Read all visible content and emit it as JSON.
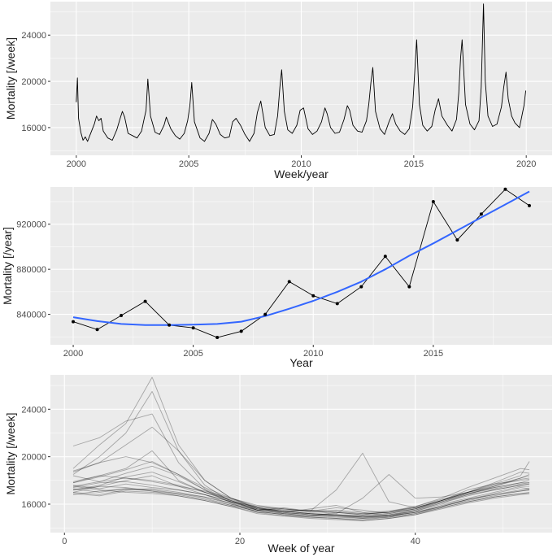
{
  "chart_data": [
    {
      "type": "line",
      "xlabel": "Week/year",
      "ylabel": "Mortality [/week]",
      "xlim": [
        1998.85,
        2021.15
      ],
      "ylim": [
        13600,
        26900
      ],
      "x_ticks": [
        2000,
        2005,
        2010,
        2015,
        2020
      ],
      "y_ticks": [
        16000,
        20000,
        24000
      ],
      "x_tick_labels": [
        "2000",
        "2005",
        "2010",
        "2015",
        "2020"
      ],
      "y_tick_labels": [
        "16000",
        "20000",
        "24000"
      ],
      "grid": true,
      "series": [
        {
          "color": "#000000",
          "description": "weekly mortality 2000-2019 (approximated)",
          "x": [
            2000.0,
            2000.05,
            2000.1,
            2000.2,
            2000.3,
            2000.4,
            2000.5,
            2000.6,
            2000.7,
            2000.8,
            2000.9,
            2001.0,
            2001.1,
            2001.2,
            2001.4,
            2001.6,
            2001.8,
            2001.95,
            2002.05,
            2002.15,
            2002.3,
            2002.5,
            2002.7,
            2002.9,
            2003.0,
            2003.1,
            2003.18,
            2003.3,
            2003.5,
            2003.7,
            2003.9,
            2004.0,
            2004.2,
            2004.4,
            2004.6,
            2004.8,
            2004.95,
            2005.05,
            2005.13,
            2005.25,
            2005.5,
            2005.7,
            2005.9,
            2006.05,
            2006.2,
            2006.4,
            2006.6,
            2006.8,
            2006.95,
            2007.1,
            2007.3,
            2007.5,
            2007.7,
            2007.9,
            2008.05,
            2008.2,
            2008.4,
            2008.6,
            2008.8,
            2008.95,
            2009.05,
            2009.13,
            2009.25,
            2009.4,
            2009.6,
            2009.8,
            2009.95,
            2010.1,
            2010.3,
            2010.5,
            2010.7,
            2010.9,
            2011.05,
            2011.15,
            2011.3,
            2011.5,
            2011.7,
            2011.9,
            2012.05,
            2012.15,
            2012.3,
            2012.5,
            2012.7,
            2012.9,
            2013.0,
            2013.1,
            2013.18,
            2013.3,
            2013.5,
            2013.7,
            2013.9,
            2014.05,
            2014.2,
            2014.4,
            2014.6,
            2014.8,
            2014.95,
            2015.05,
            2015.13,
            2015.25,
            2015.4,
            2015.6,
            2015.8,
            2015.95,
            2016.1,
            2016.25,
            2016.5,
            2016.7,
            2016.9,
            2017.0,
            2017.08,
            2017.15,
            2017.3,
            2017.5,
            2017.7,
            2017.9,
            2018.0,
            2018.1,
            2018.18,
            2018.3,
            2018.5,
            2018.7,
            2018.9,
            2019.0,
            2019.1,
            2019.2,
            2019.35,
            2019.5,
            2019.7,
            2019.9,
            2019.98
          ],
          "y": [
            18200,
            20300,
            16800,
            15600,
            14900,
            15200,
            14800,
            15300,
            15800,
            16300,
            17000,
            16600,
            16800,
            15700,
            15100,
            14900,
            15800,
            16800,
            17400,
            16900,
            15500,
            15300,
            15100,
            15700,
            16600,
            17500,
            20200,
            17000,
            15600,
            15400,
            16200,
            16900,
            15900,
            15300,
            15000,
            15500,
            16600,
            17900,
            19900,
            16500,
            15100,
            14800,
            15500,
            16700,
            16300,
            15400,
            15100,
            15200,
            16500,
            16800,
            16200,
            15400,
            14800,
            15500,
            17300,
            18300,
            16000,
            15300,
            15400,
            17000,
            19500,
            21000,
            17400,
            15800,
            15500,
            16200,
            17500,
            17700,
            15900,
            15400,
            15700,
            16500,
            17700,
            17200,
            16000,
            15500,
            15600,
            16700,
            17900,
            17500,
            16200,
            15700,
            15600,
            16600,
            18000,
            20000,
            21200,
            17400,
            15900,
            15400,
            16500,
            17200,
            16300,
            15700,
            15400,
            15900,
            17800,
            21000,
            23600,
            18000,
            16200,
            15700,
            16100,
            17500,
            18500,
            17000,
            16200,
            15700,
            16700,
            19000,
            22000,
            23600,
            18000,
            16300,
            15800,
            16600,
            19500,
            26700,
            20000,
            17000,
            16100,
            16300,
            17800,
            19500,
            20800,
            18500,
            17000,
            16400,
            16000,
            17900,
            19200
          ]
        }
      ]
    },
    {
      "type": "line",
      "xlabel": "Year",
      "ylabel": "Mortality [/year]",
      "xlim": [
        1999.05,
        2019.95
      ],
      "ylim": [
        813000,
        953000
      ],
      "x_ticks": [
        2000,
        2005,
        2010,
        2015
      ],
      "y_ticks": [
        840000,
        880000,
        920000
      ],
      "x_tick_labels": [
        "2000",
        "2005",
        "2010",
        "2015"
      ],
      "y_tick_labels": [
        "840000",
        "880000",
        "920000"
      ],
      "grid": true,
      "x": [
        2000,
        2001,
        2002,
        2003,
        2004,
        2005,
        2006,
        2007,
        2008,
        2009,
        2010,
        2011,
        2012,
        2013,
        2014,
        2015,
        2016,
        2017,
        2018,
        2019
      ],
      "series": [
        {
          "values": [
            833500,
            826500,
            839000,
            851500,
            830500,
            828000,
            819500,
            825000,
            840000,
            869000,
            856500,
            849500,
            864500,
            891500,
            864500,
            940000,
            906000,
            929000,
            951000,
            936500
          ],
          "color": "#000000"
        },
        {
          "values": [
            837500,
            834000,
            831500,
            830500,
            830500,
            830800,
            831500,
            833500,
            838500,
            845000,
            852000,
            860000,
            869000,
            880000,
            892000,
            903000,
            914500,
            926000,
            937500,
            949000
          ],
          "color": "#3366ff"
        }
      ]
    },
    {
      "type": "line",
      "xlabel": "Week of year",
      "ylabel": "Mortality [/week]",
      "xlim": [
        -1.6,
        55.6
      ],
      "ylim": [
        13600,
        26900
      ],
      "x_ticks": [
        0,
        20,
        40
      ],
      "y_ticks": [
        16000,
        20000,
        24000
      ],
      "x_tick_labels": [
        "0",
        "20",
        "40"
      ],
      "y_tick_labels": [
        "16000",
        "20000",
        "24000"
      ],
      "grid": true,
      "line_color": "#000000",
      "line_opacity": 0.3,
      "weeks": [
        1,
        4,
        7,
        10,
        13,
        16,
        19,
        22,
        25,
        28,
        31,
        34,
        37,
        40,
        43,
        46,
        49,
        52,
        53
      ],
      "series": [
        {
          "values": [
            18800,
            19500,
            21000,
            22500,
            20500,
            18000,
            16500,
            15600,
            15400,
            15300,
            15400,
            15200,
            15300,
            15700,
            16300,
            17000,
            17600,
            18200,
            18400
          ]
        },
        {
          "values": [
            20900,
            21600,
            23000,
            23600,
            19500,
            17300,
            16300,
            15700,
            15200,
            15000,
            15300,
            15100,
            15300,
            15800,
            16500,
            17400,
            18200,
            19000,
            18900
          ]
        },
        {
          "values": [
            19000,
            21000,
            22800,
            26700,
            21000,
            18000,
            16500,
            15800,
            15600,
            15400,
            15700,
            15500,
            15200,
            15600,
            16300,
            17000,
            17800,
            18700,
            18600
          ]
        },
        {
          "values": [
            18500,
            20000,
            22000,
            25500,
            20500,
            17600,
            16200,
            15500,
            15300,
            15600,
            15900,
            15300,
            15000,
            15400,
            16100,
            16800,
            17500,
            18200,
            18500
          ]
        },
        {
          "values": [
            17800,
            18400,
            19000,
            20500,
            18000,
            17000,
            16300,
            15500,
            15700,
            15400,
            17200,
            20300,
            16200,
            15700,
            16300,
            17200,
            17700,
            18000,
            18100
          ]
        },
        {
          "values": [
            18700,
            19500,
            20000,
            19500,
            18500,
            17200,
            16300,
            15500,
            15600,
            15400,
            15200,
            16500,
            18500,
            16500,
            16600,
            17000,
            17400,
            17800,
            18000
          ]
        },
        {
          "values": [
            17500,
            17900,
            18600,
            19200,
            18400,
            17200,
            16100,
            15300,
            15200,
            15200,
            15000,
            14900,
            15000,
            15500,
            16200,
            16900,
            17400,
            17800,
            17800
          ]
        },
        {
          "values": [
            17800,
            18300,
            18900,
            19600,
            18500,
            17400,
            16500,
            15700,
            15400,
            15500,
            15300,
            15100,
            15400,
            15800,
            16400,
            17000,
            17500,
            18100,
            18200
          ]
        },
        {
          "values": [
            17200,
            17600,
            18300,
            18700,
            17900,
            17000,
            16200,
            15600,
            15400,
            15200,
            15100,
            15000,
            15100,
            15400,
            16000,
            16500,
            17000,
            17500,
            17500
          ]
        },
        {
          "values": [
            17000,
            17500,
            18000,
            18400,
            17500,
            16800,
            16000,
            15500,
            15300,
            15100,
            15000,
            14800,
            15000,
            15300,
            15800,
            16400,
            16900,
            17400,
            17300
          ]
        },
        {
          "values": [
            18400,
            17900,
            18200,
            17900,
            17500,
            17100,
            16500,
            15900,
            15600,
            15400,
            15500,
            15300,
            15400,
            15700,
            16300,
            16900,
            17300,
            17700,
            17800
          ]
        },
        {
          "values": [
            17600,
            17300,
            17700,
            17400,
            17200,
            16800,
            16200,
            15800,
            15500,
            15500,
            15300,
            15200,
            15300,
            15600,
            16200,
            16800,
            17200,
            17600,
            17700
          ]
        },
        {
          "values": [
            17300,
            17000,
            17300,
            17100,
            16900,
            16600,
            16100,
            15600,
            15300,
            15100,
            15000,
            14900,
            15000,
            15300,
            15800,
            16400,
            16800,
            17200,
            17300
          ]
        },
        {
          "values": [
            16900,
            16700,
            17100,
            17000,
            16800,
            16400,
            15900,
            15400,
            15100,
            15000,
            14900,
            14800,
            14900,
            15200,
            15700,
            16200,
            16600,
            16900,
            16900
          ]
        },
        {
          "values": [
            17000,
            16800,
            17200,
            17300,
            17000,
            16600,
            16000,
            15500,
            15200,
            15000,
            15100,
            14900,
            15000,
            15300,
            15900,
            16400,
            16800,
            17100,
            17200
          ]
        },
        {
          "values": [
            17200,
            17500,
            17400,
            17100,
            16700,
            16300,
            15800,
            15200,
            15000,
            14900,
            14800,
            14700,
            14900,
            15200,
            15800,
            16300,
            16700,
            17100,
            17200
          ]
        },
        {
          "values": [
            16800,
            17100,
            17300,
            17200,
            16900,
            16500,
            15900,
            15400,
            15100,
            14900,
            14800,
            14600,
            14800,
            15100,
            15700,
            16200,
            16600,
            16900,
            17000
          ]
        },
        {
          "values": [
            17500,
            17200,
            17000,
            16900,
            16700,
            16300,
            15800,
            15300,
            15000,
            14800,
            14700,
            14600,
            14800,
            15100,
            15600,
            16100,
            16500,
            16800,
            16900
          ]
        },
        {
          "values": [
            17900,
            18400,
            18200,
            18000,
            17600,
            17000,
            16400,
            15700,
            15400,
            15200,
            15100,
            15000,
            15100,
            15500,
            16100,
            16700,
            17200,
            17600,
            17700
          ]
        },
        {
          "values": [
            17400,
            17800,
            17900,
            17600,
            17200,
            16800,
            16200,
            15700,
            15400,
            15200,
            15100,
            15000,
            15200,
            15600,
            16300,
            17000,
            17700,
            18400,
            19600
          ]
        }
      ]
    }
  ],
  "colors": {
    "panel_bg": "#ebebeb",
    "grid_major": "#ffffff",
    "tick_text": "#4d4d4d",
    "title_text": "#1a1a1a"
  }
}
